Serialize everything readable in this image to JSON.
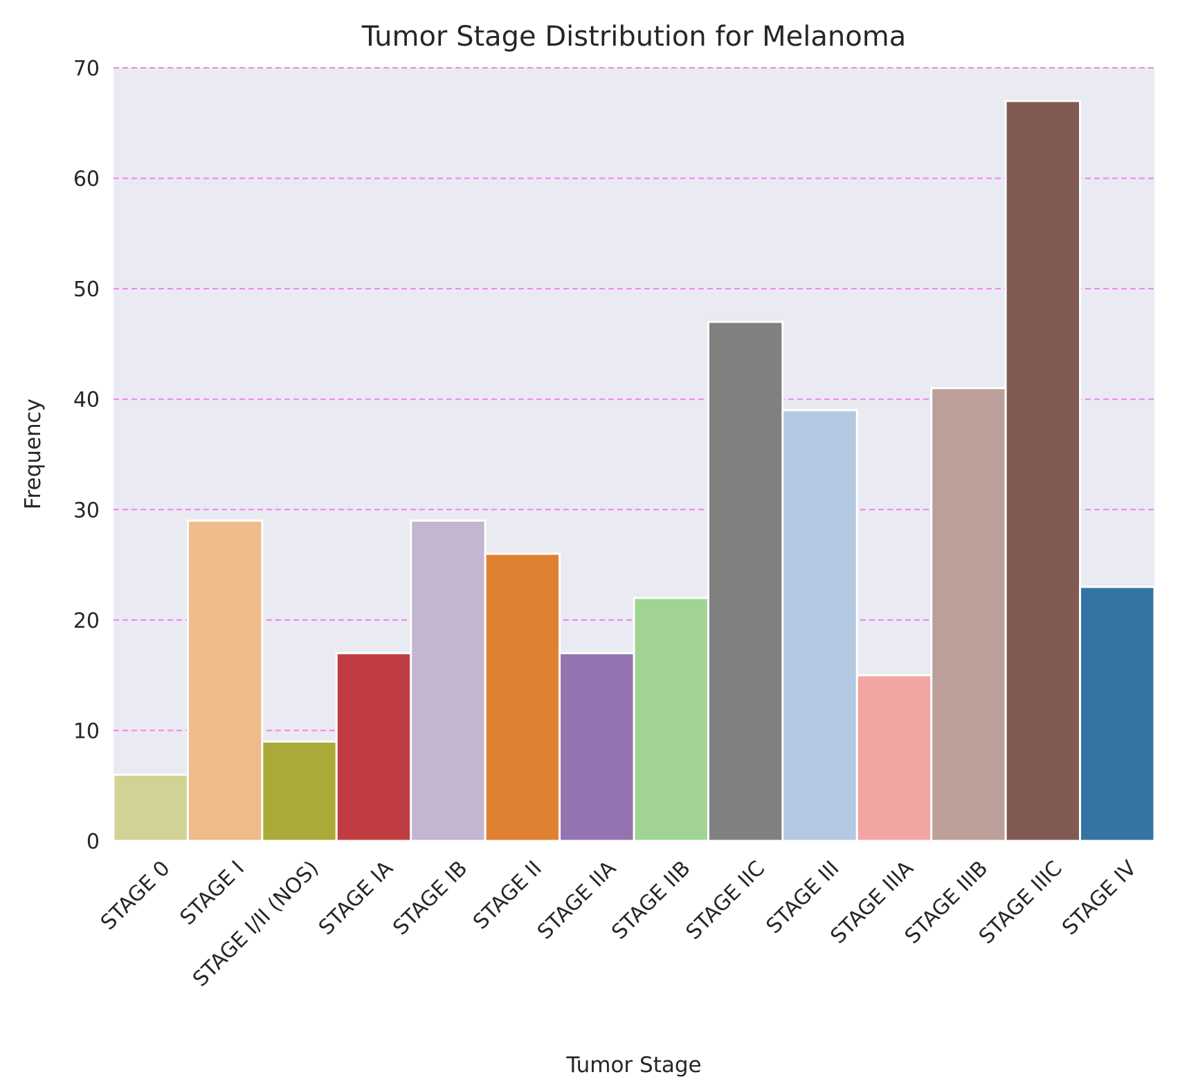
{
  "chart_data": {
    "type": "bar",
    "title": "Tumor Stage Distribution for Melanoma",
    "xlabel": "Tumor Stage",
    "ylabel": "Frequency",
    "categories": [
      "STAGE 0",
      "STAGE I",
      "STAGE I/II (NOS)",
      "STAGE IA",
      "STAGE IB",
      "STAGE II",
      "STAGE IIA",
      "STAGE IIB",
      "STAGE IIC",
      "STAGE III",
      "STAGE IIIA",
      "STAGE IIIB",
      "STAGE IIIC",
      "STAGE IV"
    ],
    "values": [
      6,
      29,
      9,
      17,
      29,
      26,
      17,
      22,
      47,
      39,
      15,
      41,
      67,
      23
    ],
    "colors": [
      "#d1d295",
      "#efbb8a",
      "#a9ab39",
      "#bf3d40",
      "#c4b5d1",
      "#e08131",
      "#9474b0",
      "#a1d494",
      "#808080",
      "#b4c8e1",
      "#f3a5a4",
      "#bd9f99",
      "#815b53",
      "#3374a2"
    ],
    "ylim": [
      0,
      70
    ],
    "yticks": [
      0,
      10,
      20,
      30,
      40,
      50,
      60,
      70
    ],
    "grid": true,
    "grid_color": "#ee82ee",
    "background": "#eaeaf2",
    "legend": "none"
  }
}
